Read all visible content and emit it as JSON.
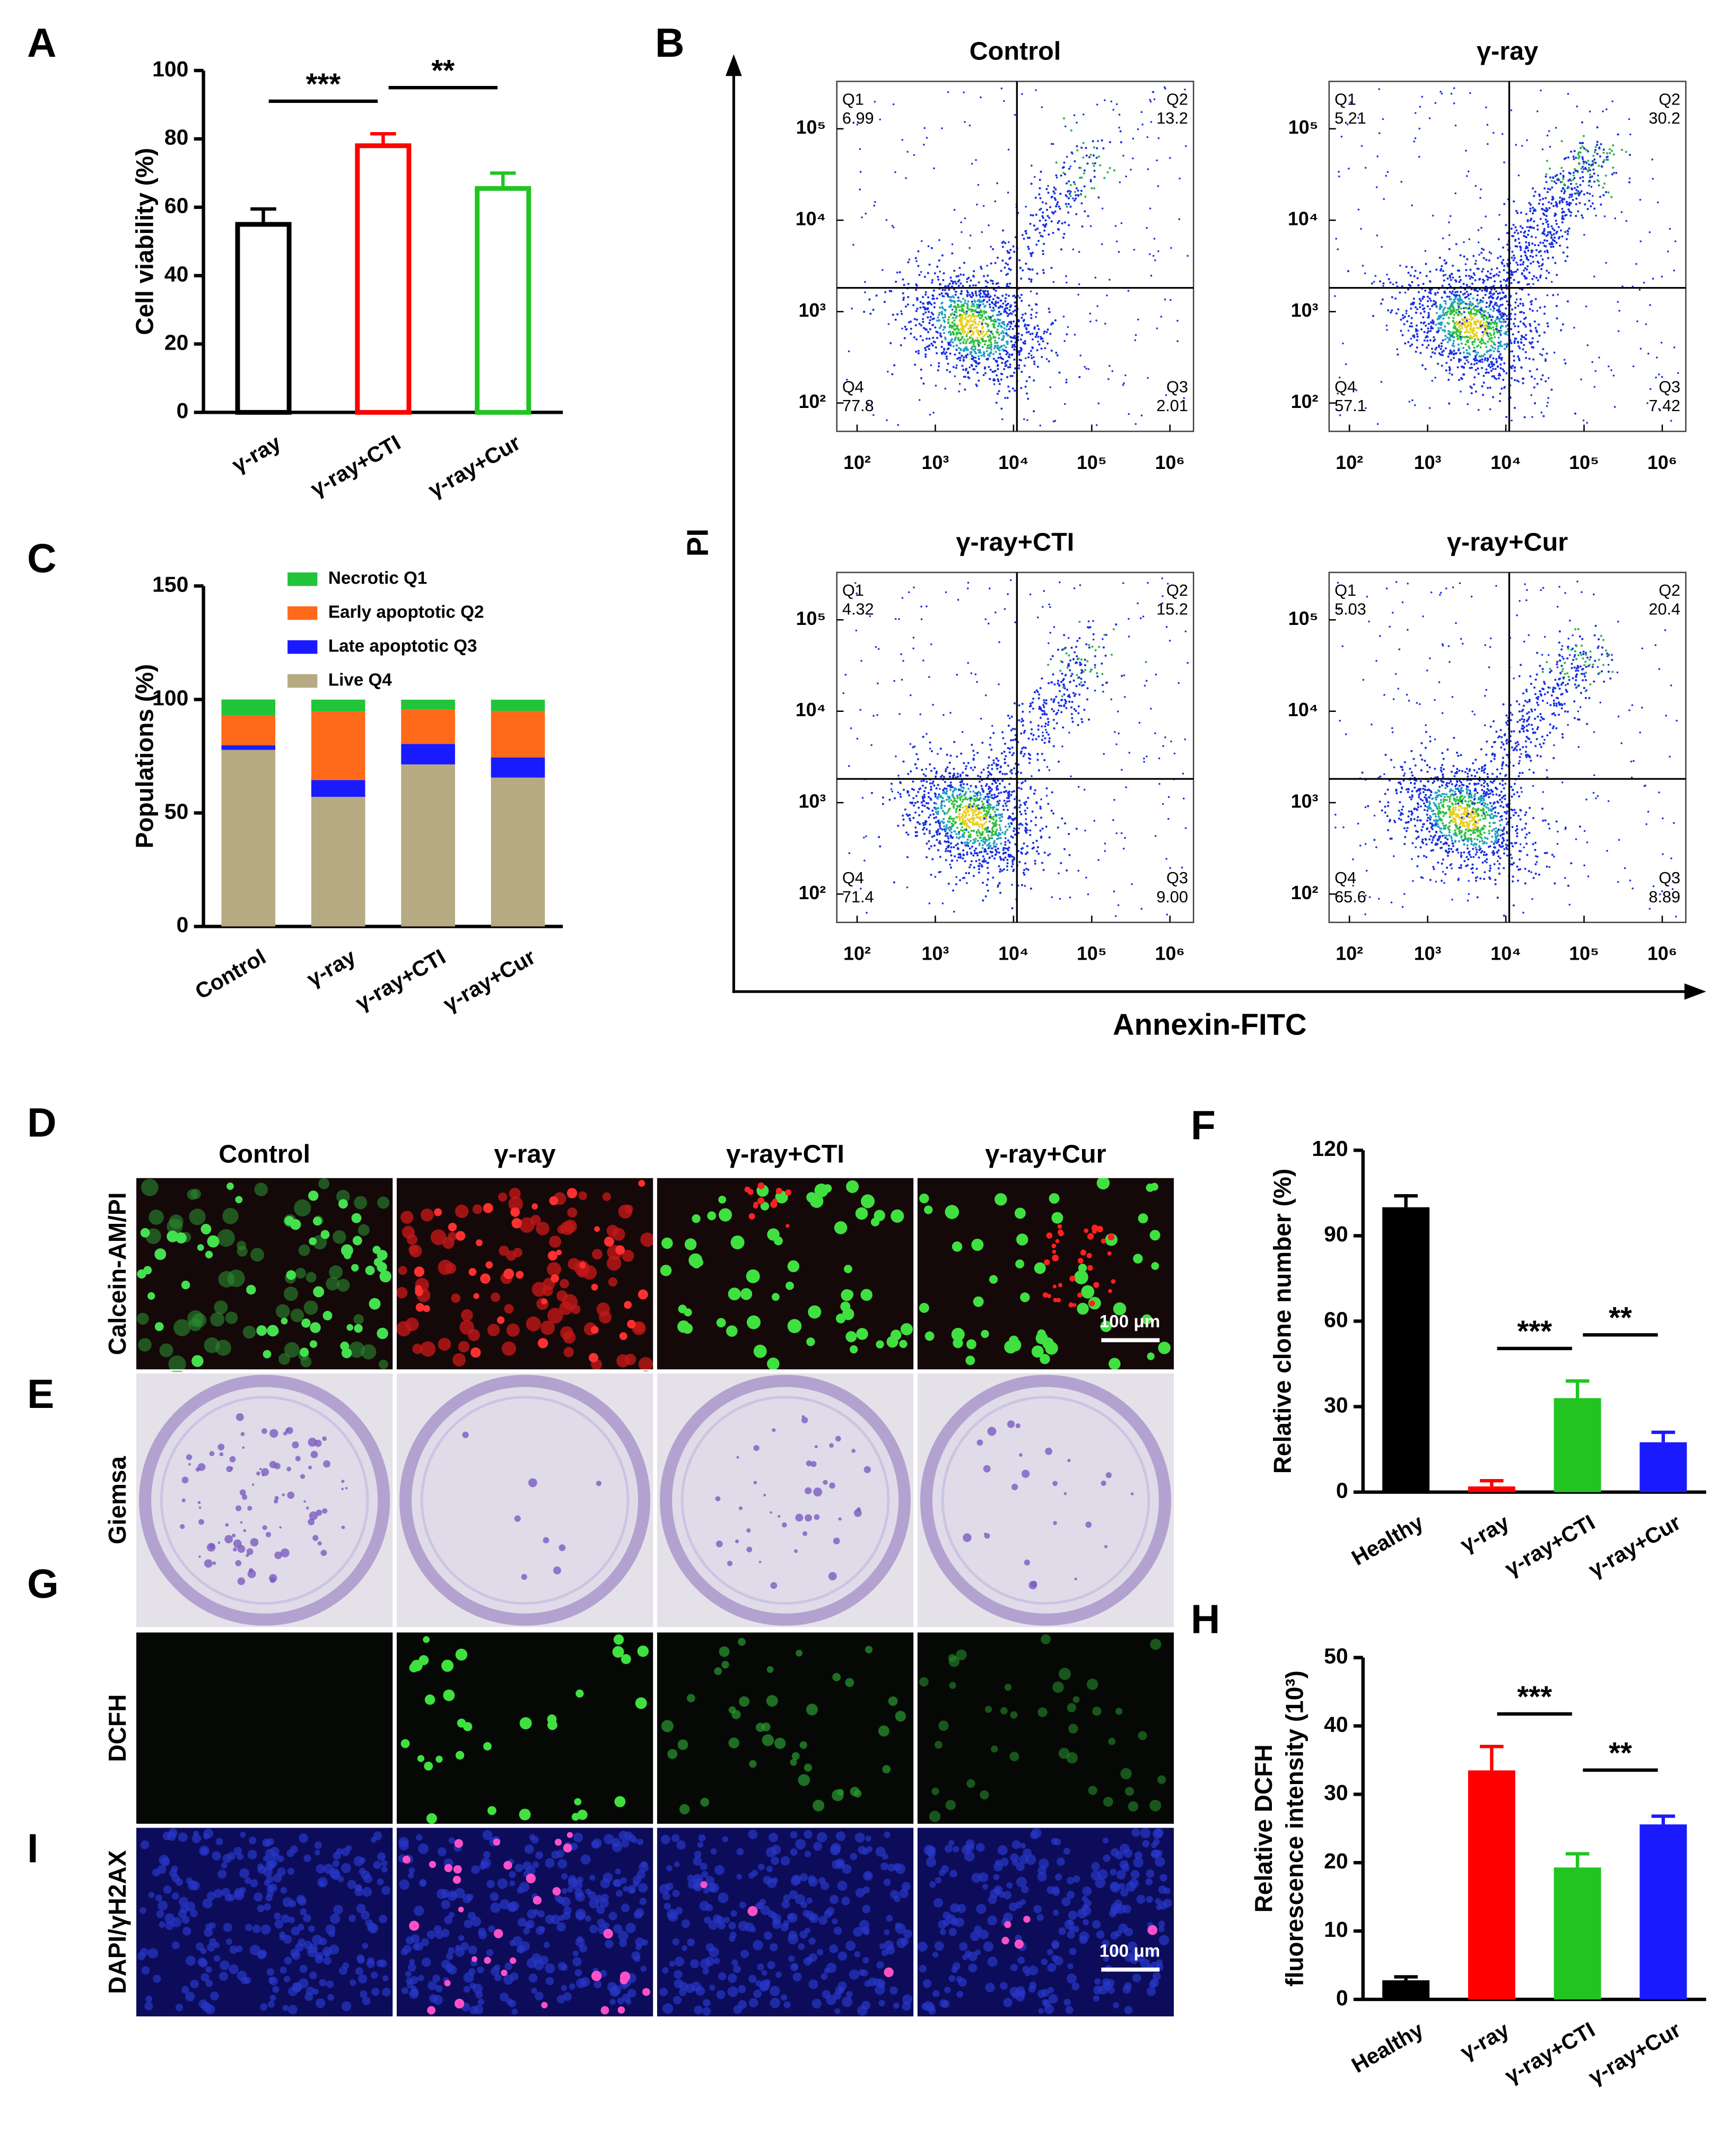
{
  "chart_data": [
    {
      "type": "bar",
      "panel": "A",
      "y_label": "Cell viability (%)",
      "categories": [
        "γ-ray",
        "γ-ray+CTI",
        "γ-ray+Cur"
      ],
      "values": [
        55,
        78,
        65.5
      ],
      "errors": [
        4.5,
        3.5,
        4.5
      ],
      "colors": [
        "#000000",
        "#ff0000",
        "#22c422"
      ],
      "fill": "outline",
      "ylim": [
        0,
        100
      ],
      "yticks": [
        0,
        20,
        40,
        60,
        80,
        100
      ],
      "annotations": [
        {
          "text": "***",
          "between": [
            "γ-ray",
            "γ-ray+CTI"
          ]
        },
        {
          "text": "**",
          "between": [
            "γ-ray+CTI",
            "γ-ray+Cur"
          ]
        }
      ]
    },
    {
      "type": "flow",
      "panel": "B",
      "x_label": "Annexin-FITC",
      "y_label": "PI",
      "xscale": "log",
      "yscale": "log",
      "xlim": [
        55,
        2000000
      ],
      "ylim": [
        49,
        330000
      ],
      "xticks": [
        {
          "value": 100,
          "label": "10²"
        },
        {
          "value": 1000,
          "label": "10³"
        },
        {
          "value": 10000,
          "label": "10⁴"
        },
        {
          "value": 100000,
          "label": "10⁵"
        },
        {
          "value": 1000000,
          "label": "10⁶"
        }
      ],
      "yticks": [
        {
          "value": 100,
          "label": "10²"
        },
        {
          "value": 1000,
          "label": "10³"
        },
        {
          "value": 10000,
          "label": "10⁴"
        },
        {
          "value": 100000,
          "label": "10⁵"
        }
      ],
      "subplots": [
        {
          "title": "Control",
          "quadrants": [
            {
              "name": "Q1",
              "value": 6.99
            },
            {
              "name": "Q2",
              "value": 13.2
            },
            {
              "name": "Q3",
              "value": 2.01
            },
            {
              "name": "Q4",
              "value": 77.8
            }
          ]
        },
        {
          "title": "γ-ray",
          "quadrants": [
            {
              "name": "Q1",
              "value": 5.21
            },
            {
              "name": "Q2",
              "value": 30.2
            },
            {
              "name": "Q3",
              "value": 7.42
            },
            {
              "name": "Q4",
              "value": 57.1
            }
          ]
        },
        {
          "title": "γ-ray+CTI",
          "quadrants": [
            {
              "name": "Q1",
              "value": 4.32
            },
            {
              "name": "Q2",
              "value": 15.2
            },
            {
              "name": "Q3",
              "value": 9,
              "label": "9.00"
            },
            {
              "name": "Q4",
              "value": 71.4
            }
          ]
        },
        {
          "title": "γ-ray+Cur",
          "quadrants": [
            {
              "name": "Q1",
              "value": 5.03
            },
            {
              "name": "Q2",
              "value": 20.4
            },
            {
              "name": "Q3",
              "value": 8.89
            },
            {
              "name": "Q4",
              "value": 65.6
            }
          ]
        }
      ]
    },
    {
      "type": "stacked_bar",
      "panel": "C",
      "y_label": "Populations (%)",
      "categories": [
        "Control",
        "γ-ray",
        "γ-ray+CTI",
        "γ-ray+Cur"
      ],
      "series": [
        {
          "name": "Live Q4",
          "color": "#b5aa82",
          "values": [
            77.8,
            57.1,
            71.4,
            65.6
          ]
        },
        {
          "name": "Late apoptotic Q3",
          "color": "#1a1aff",
          "values": [
            2.01,
            7.42,
            9,
            8.89
          ]
        },
        {
          "name": "Early apoptotic Q2",
          "color": "#ff6a1a",
          "values": [
            13.2,
            30.2,
            15.2,
            20.4
          ]
        },
        {
          "name": "Necrotic Q1",
          "color": "#22c43a",
          "values": [
            6.99,
            5.21,
            4.32,
            5.03
          ]
        }
      ],
      "ylim": [
        0,
        150
      ],
      "yticks": [
        0,
        50,
        100,
        150
      ]
    },
    {
      "type": "bar",
      "panel": "F",
      "y_label": "Relative clone number (%)",
      "categories": [
        "Healthy",
        "γ-ray",
        "γ-ray+CTI",
        "γ-ray+Cur"
      ],
      "values": [
        100,
        2,
        33,
        17.5
      ],
      "errors": [
        4,
        2,
        6,
        3.5
      ],
      "colors": [
        "#000000",
        "#ff0000",
        "#22c422",
        "#1a1aff"
      ],
      "fill": "solid",
      "ylim": [
        0,
        120
      ],
      "yticks": [
        0,
        30,
        60,
        90,
        120
      ],
      "annotations": [
        {
          "text": "***",
          "between": [
            "γ-ray",
            "γ-ray+CTI"
          ]
        },
        {
          "text": "**",
          "between": [
            "γ-ray+CTI",
            "γ-ray+Cur"
          ]
        }
      ]
    },
    {
      "type": "bar",
      "panel": "H",
      "y_label": [
        "Relative DCFH",
        "fluorescence intensity (10³)"
      ],
      "categories": [
        "Healthy",
        "γ-ray",
        "γ-ray+CTI",
        "γ-ray+Cur"
      ],
      "values": [
        2.8,
        33.5,
        19.3,
        25.6
      ],
      "errors": [
        0.5,
        3.5,
        2,
        1.2
      ],
      "colors": [
        "#000000",
        "#ff0000",
        "#22c422",
        "#1a1aff"
      ],
      "fill": "solid",
      "ylim": [
        0,
        50
      ],
      "yticks": [
        0,
        10,
        20,
        30,
        40,
        50
      ],
      "annotations": [
        {
          "text": "***",
          "between": [
            "γ-ray",
            "γ-ray+CTI"
          ]
        },
        {
          "text": "**",
          "between": [
            "γ-ray+CTI",
            "γ-ray+Cur"
          ]
        }
      ]
    }
  ],
  "image_columns": [
    "Control",
    "γ-ray",
    "γ-ray+CTI",
    "γ-ray+Cur"
  ],
  "image_panels": [
    {
      "panel": "D",
      "row_label": "Calcein-AM/PI",
      "scale_bar": "100 μm"
    },
    {
      "panel": "E",
      "row_label": "Giemsa"
    },
    {
      "panel": "G",
      "row_label": "DCFH"
    },
    {
      "panel": "I",
      "row_label": "DAPI/γH2AX",
      "scale_bar": "100 μm"
    }
  ]
}
